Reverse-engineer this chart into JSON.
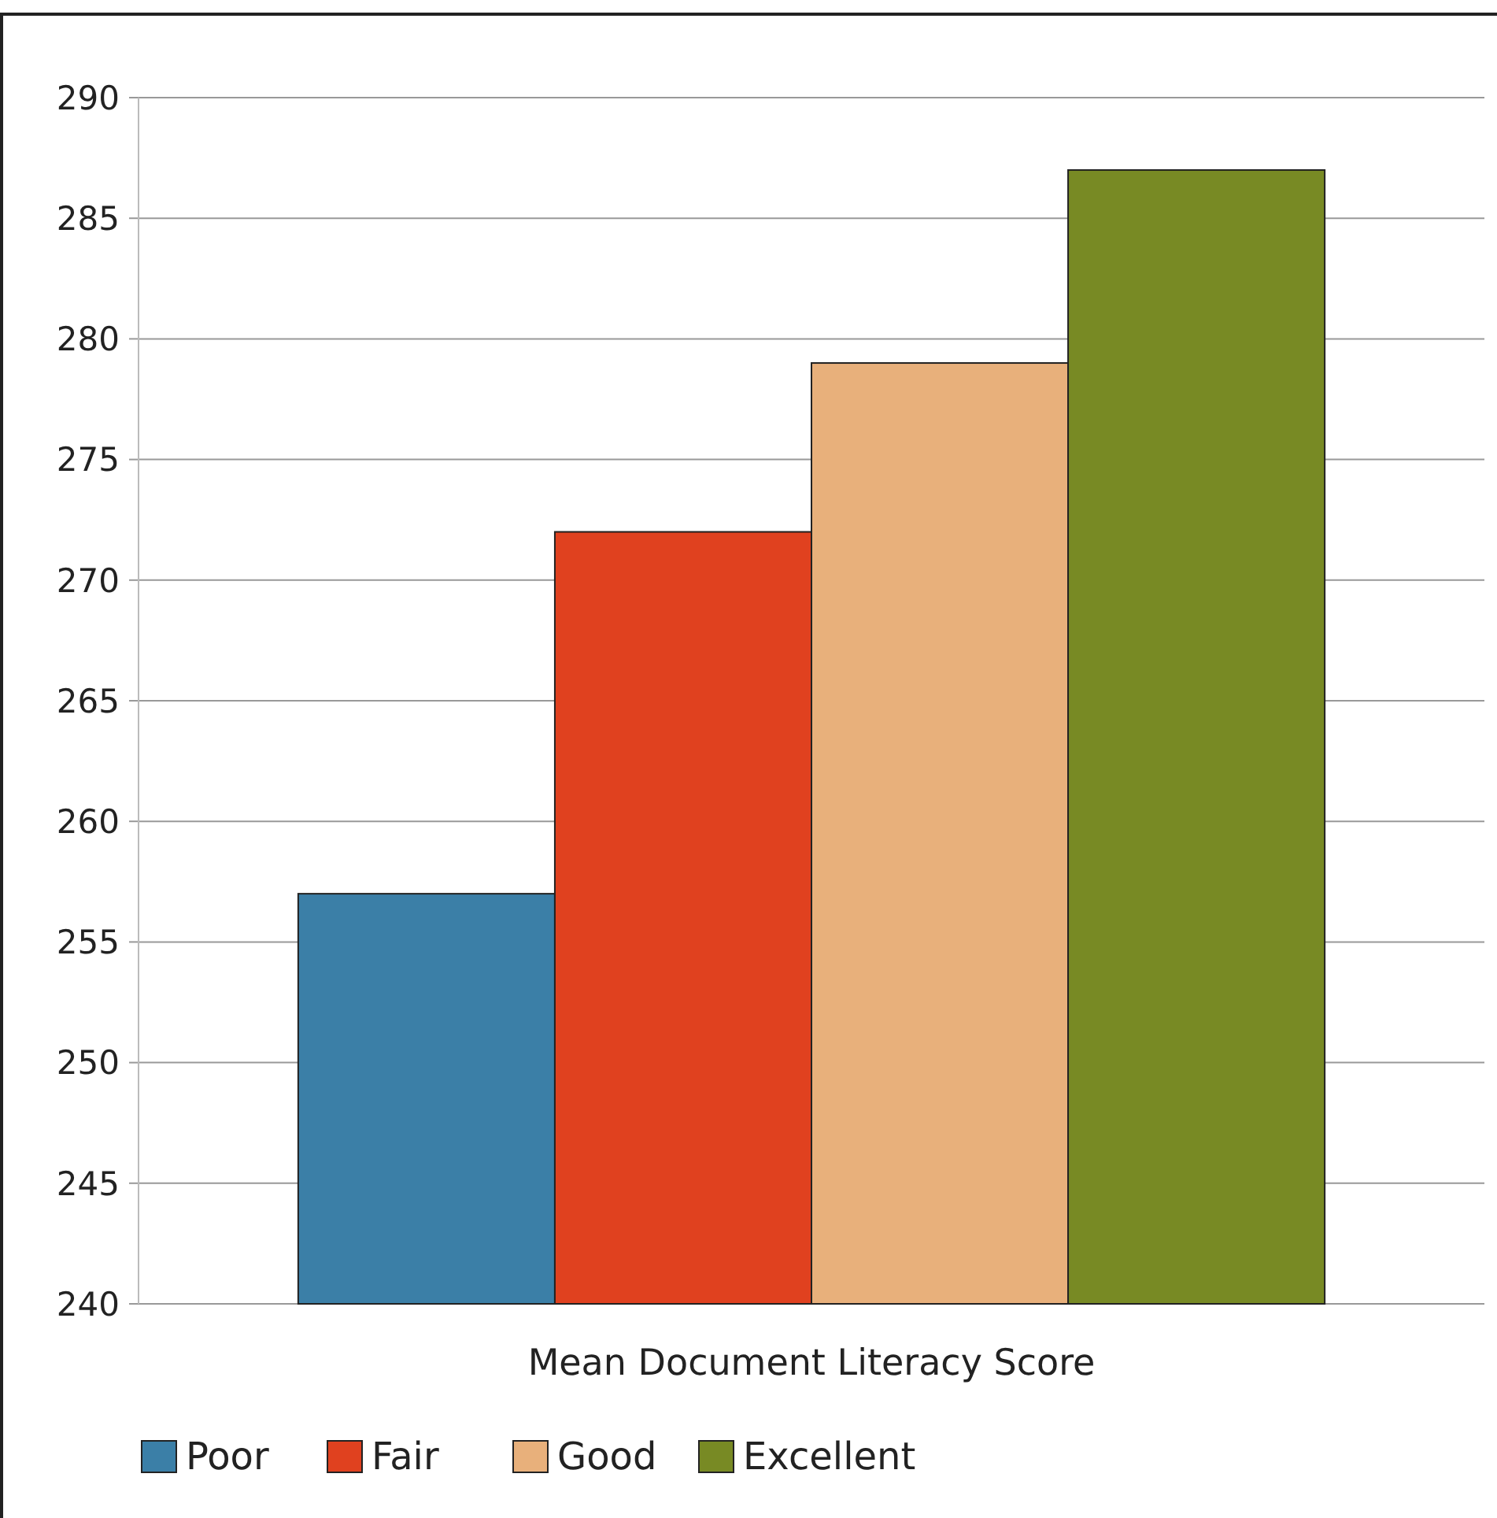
{
  "chart_data": {
    "type": "bar",
    "categories": [
      "Mean Document Literacy Score"
    ],
    "series": [
      {
        "name": "Poor",
        "color": "#3b7fa7",
        "values": [
          257
        ]
      },
      {
        "name": "Fair",
        "color": "#e0411f",
        "values": [
          272
        ]
      },
      {
        "name": "Good",
        "color": "#e8b07b",
        "values": [
          279
        ]
      },
      {
        "name": "Excellent",
        "color": "#788a24",
        "values": [
          287
        ]
      }
    ],
    "ylim": [
      240,
      290
    ],
    "yticks": [
      240,
      245,
      250,
      255,
      260,
      265,
      270,
      275,
      280,
      285,
      290
    ],
    "grid": "y",
    "legend": "bottom"
  }
}
